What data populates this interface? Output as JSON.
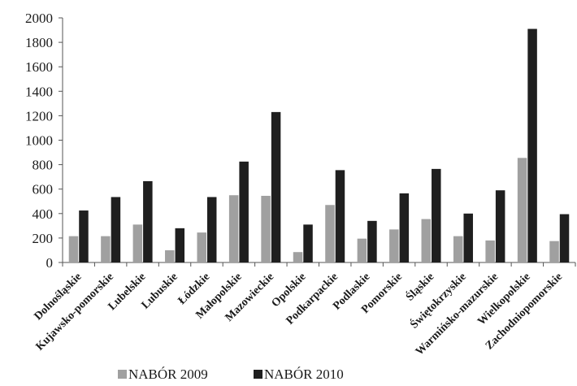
{
  "chart_data": {
    "type": "bar",
    "title": "",
    "xlabel": "",
    "ylabel": "",
    "ylim": [
      0,
      2000
    ],
    "yticks": [
      0,
      200,
      400,
      600,
      800,
      1000,
      1200,
      1400,
      1600,
      1800,
      2000
    ],
    "grid": false,
    "legend_position": "bottom",
    "categories": [
      "Dolnośląskie",
      "Kujawsko-pomorskie",
      "Lubelskie",
      "Lubuskie",
      "Łódzkie",
      "Małopolskie",
      "Mazowieckie",
      "Opolskie",
      "Podkarpackie",
      "Podlaskie",
      "Pomorskie",
      "Śląskie",
      "Świętokrzyskie",
      "Warmińsko-mazurskie",
      "Wielkopolskie",
      "Zachodniopomorskie"
    ],
    "series": [
      {
        "name": "NABÓR 2009",
        "color": "#a0a0a0",
        "values": [
          215,
          215,
          310,
          100,
          245,
          550,
          545,
          85,
          470,
          195,
          270,
          355,
          215,
          180,
          855,
          175
        ]
      },
      {
        "name": "NABÓR 2010",
        "color": "#1f1f1f",
        "values": [
          425,
          535,
          665,
          280,
          535,
          825,
          1230,
          310,
          755,
          340,
          565,
          765,
          400,
          590,
          1910,
          395
        ]
      }
    ]
  }
}
